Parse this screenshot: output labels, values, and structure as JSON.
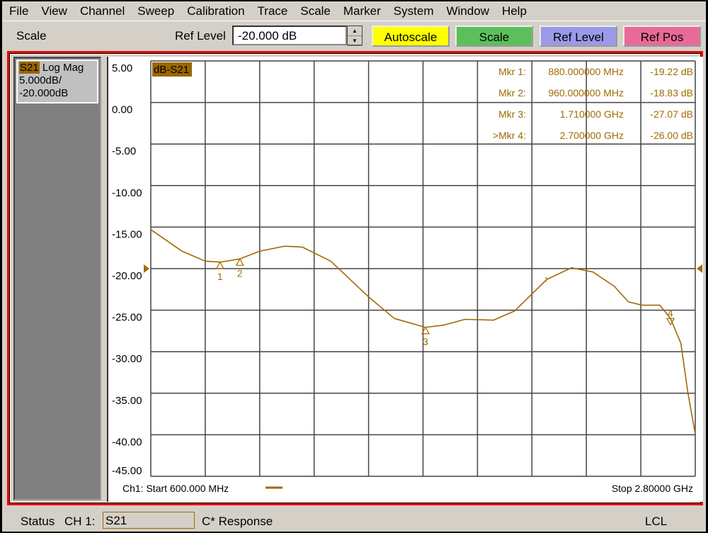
{
  "menu": [
    "File",
    "View",
    "Channel",
    "Sweep",
    "Calibration",
    "Trace",
    "Scale",
    "Marker",
    "System",
    "Window",
    "Help"
  ],
  "toolbar": {
    "title": "Scale",
    "ref_level_label": "Ref Level",
    "ref_level_value": "-20.000 dB",
    "softkeys": [
      {
        "label": "Autoscale",
        "color": "#ffff00"
      },
      {
        "label": "Scale",
        "color": "#5cbf5c"
      },
      {
        "label": "Ref Level",
        "color": "#9a9ae8"
      },
      {
        "label": "Ref Pos",
        "color": "#e86a98"
      }
    ]
  },
  "trace_info": {
    "param": "S21",
    "format": "Log Mag",
    "scale": "5.000dB/",
    "ref": "-20.000dB"
  },
  "plot": {
    "trace_label": "dB-S21",
    "footer_start": "Ch1: Start  600.000 MHz",
    "footer_stop": "Stop  2.80000 GHz",
    "markers": [
      {
        "label": "Mkr  1:",
        "stim": "880.000000 MHz",
        "resp": "-19.22 dB"
      },
      {
        "label": "Mkr  2:",
        "stim": "960.000000 MHz",
        "resp": "-18.83 dB"
      },
      {
        "label": "Mkr  3:",
        "stim": "1.710000 GHz",
        "resp": "-27.07 dB"
      },
      {
        "label": ">Mkr  4:",
        "stim": "2.700000 GHz",
        "resp": "-26.00 dB"
      }
    ]
  },
  "chart_data": {
    "type": "line",
    "xlim_mhz": [
      600,
      2800
    ],
    "ylim": [
      -45,
      5
    ],
    "yticks": [
      "5.00",
      "0.00",
      "-5.00",
      "-10.00",
      "-15.00",
      "-20.00",
      "-25.00",
      "-30.00",
      "-35.00",
      "-40.00",
      "-45.00"
    ],
    "ref_level": -20,
    "trace_color": "#a06a00",
    "grid": true,
    "series": [
      {
        "name": "S21",
        "x_mhz": [
          600,
          726,
          820,
          880,
          960,
          1040,
          1140,
          1212,
          1327,
          1480,
          1584,
          1710,
          1784,
          1870,
          1985,
          2070,
          2200,
          2300,
          2386,
          2472,
          2530,
          2585,
          2657,
          2700,
          2742,
          2770,
          2800
        ],
        "y": [
          -15.3,
          -17.9,
          -19.1,
          -19.22,
          -18.83,
          -17.9,
          -17.3,
          -17.4,
          -19.1,
          -23.4,
          -26.0,
          -27.07,
          -26.8,
          -26.1,
          -26.2,
          -25.1,
          -21.3,
          -19.9,
          -20.4,
          -22.1,
          -24.0,
          -24.4,
          -24.4,
          -26.0,
          -29.0,
          -34.9,
          -39.9
        ]
      }
    ],
    "marker_points": [
      {
        "n": "1",
        "x_mhz": 880,
        "y": -19.22
      },
      {
        "n": "2",
        "x_mhz": 960,
        "y": -18.83
      },
      {
        "n": "3",
        "x_mhz": 1710,
        "y": -27.07
      },
      {
        "n": "4",
        "x_mhz": 2700,
        "y": -26.0
      }
    ]
  },
  "status": {
    "label": "Status",
    "channel": "CH 1:",
    "param": "S21",
    "cal": "C* Response",
    "mode": "LCL"
  }
}
